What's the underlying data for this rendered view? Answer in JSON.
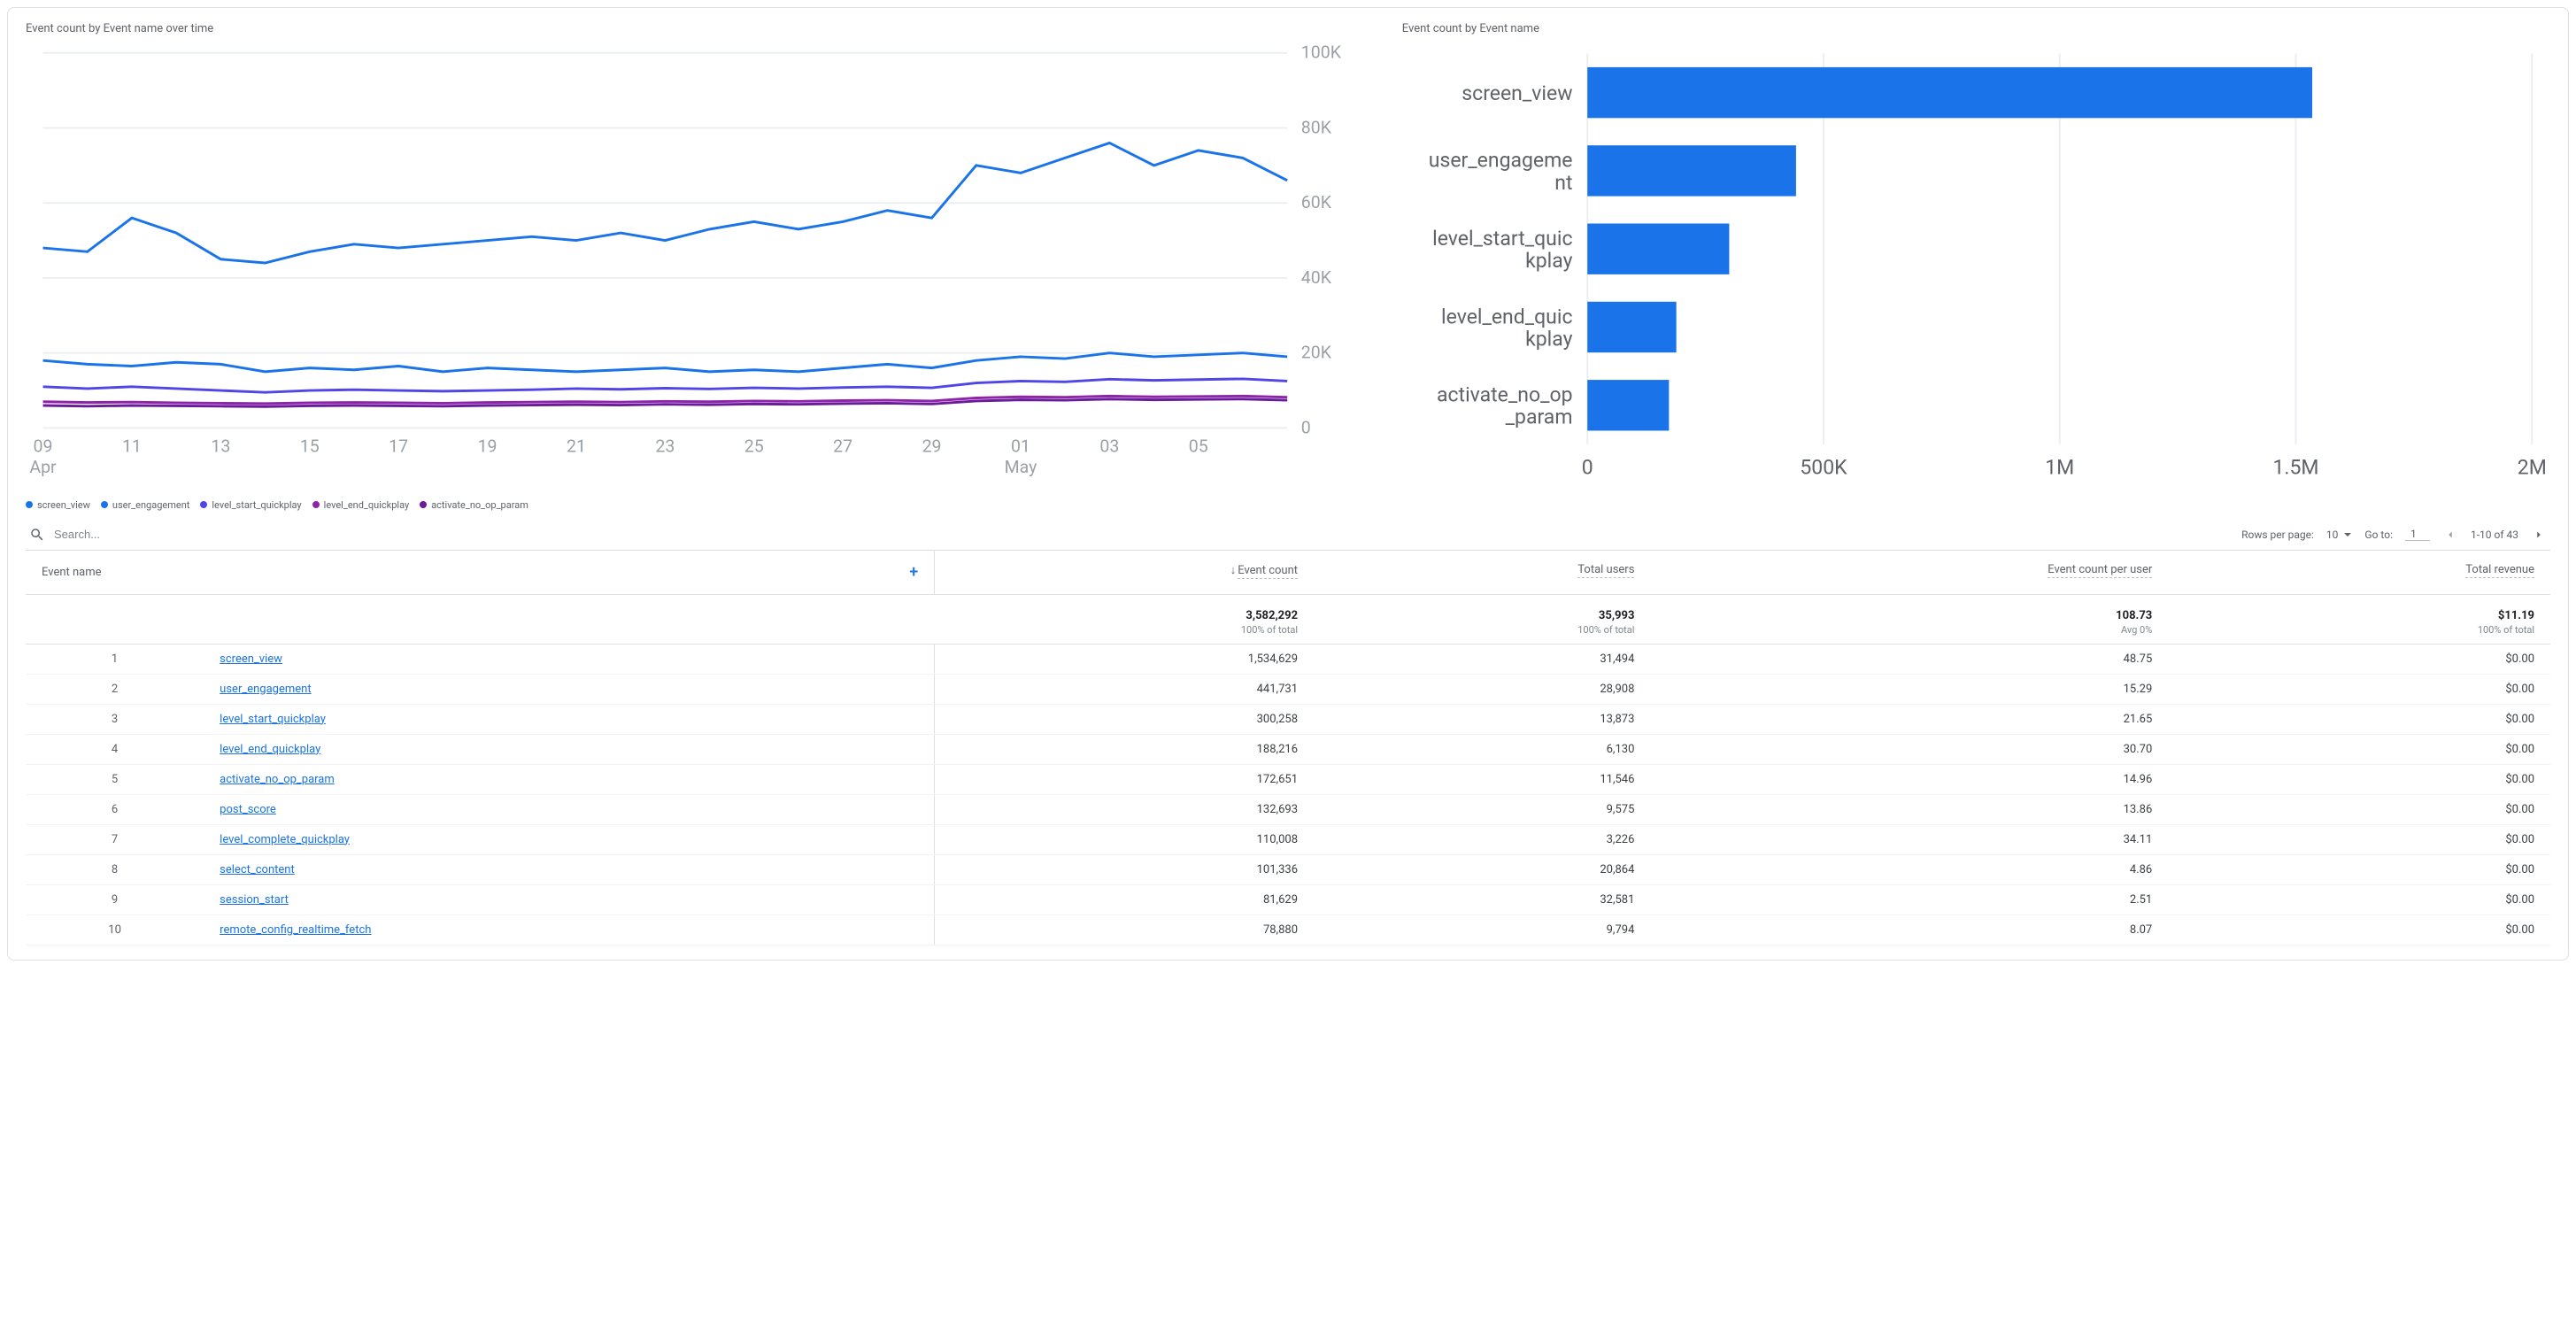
{
  "line_chart": {
    "title": "Event count by Event name over time",
    "type": "line",
    "background_color": "#ffffff",
    "grid_color": "#eceff1",
    "axis_text_color": "#9aa0a6",
    "axis_fontsize": 10,
    "line_width": 1.5,
    "y": {
      "min": 0,
      "max": 100000,
      "ticks": [
        0,
        20000,
        40000,
        60000,
        80000,
        100000
      ],
      "tick_labels": [
        "0",
        "20K",
        "40K",
        "60K",
        "80K",
        "100K"
      ]
    },
    "x": {
      "ticks": [
        0,
        1,
        2,
        3,
        4,
        5,
        6,
        7,
        8,
        9,
        10,
        11,
        12,
        13,
        14
      ],
      "tick_labels": [
        "09",
        "11",
        "13",
        "15",
        "17",
        "19",
        "21",
        "23",
        "25",
        "27",
        "29",
        "01",
        "03",
        "05",
        ""
      ],
      "lower_labels": {
        "0": "Apr",
        "11": "May"
      }
    },
    "n_points": 29,
    "series": [
      {
        "name": "screen_view",
        "color": "#1a73e8",
        "values": [
          48000,
          47000,
          56000,
          52000,
          45000,
          44000,
          47000,
          49000,
          48000,
          49000,
          50000,
          51000,
          50000,
          52000,
          50000,
          53000,
          55000,
          53000,
          55000,
          58000,
          56000,
          70000,
          68000,
          72000,
          76000,
          70000,
          74000,
          72000,
          66000
        ]
      },
      {
        "name": "user_engagement",
        "color": "#1a73e8",
        "values": [
          18000,
          17000,
          16500,
          17500,
          17000,
          15000,
          16000,
          15500,
          16500,
          15000,
          16000,
          15500,
          15000,
          15500,
          16000,
          15000,
          15500,
          15000,
          16000,
          17000,
          16000,
          18000,
          19000,
          18500,
          20000,
          19000,
          19500,
          20000,
          19000
        ]
      },
      {
        "name": "level_start_quickplay",
        "color": "#4f46e5",
        "values": [
          11000,
          10500,
          11000,
          10500,
          10000,
          9500,
          10000,
          10200,
          10000,
          9800,
          10000,
          10200,
          10500,
          10300,
          10600,
          10400,
          10700,
          10500,
          10800,
          11000,
          10700,
          12000,
          12500,
          12300,
          13000,
          12700,
          12900,
          13100,
          12500
        ]
      },
      {
        "name": "level_end_quickplay",
        "color": "#8e24aa",
        "values": [
          7000,
          6800,
          6900,
          6700,
          6600,
          6500,
          6700,
          6800,
          6700,
          6600,
          6800,
          6900,
          7000,
          6900,
          7100,
          7000,
          7200,
          7100,
          7300,
          7400,
          7200,
          8000,
          8300,
          8200,
          8500,
          8300,
          8400,
          8500,
          8200
        ]
      },
      {
        "name": "activate_no_op_param",
        "color": "#6a1b9a",
        "values": [
          6000,
          5800,
          6000,
          5900,
          5800,
          5700,
          5900,
          6000,
          5900,
          5800,
          6000,
          6100,
          6200,
          6100,
          6300,
          6200,
          6400,
          6300,
          6500,
          6600,
          6400,
          7200,
          7500,
          7400,
          7700,
          7500,
          7600,
          7700,
          7400
        ]
      }
    ]
  },
  "bar_chart": {
    "title": "Event count by Event name",
    "type": "bar-horizontal",
    "bar_color": "#1a73e8",
    "grid_color": "#eceff1",
    "axis_text_color": "#5f6368",
    "axis_fontsize": 11,
    "x": {
      "min": 0,
      "max": 2000000,
      "ticks": [
        0,
        500000,
        1000000,
        1500000,
        2000000
      ],
      "tick_labels": [
        "0",
        "500K",
        "1M",
        "1.5M",
        "2M"
      ]
    },
    "bars": [
      {
        "label": "screen_view",
        "value": 1534629
      },
      {
        "label": "user_engagement",
        "value": 441731,
        "label_wrap": "user_engageme\nnt"
      },
      {
        "label": "level_start_quickplay",
        "value": 300258,
        "label_wrap": "level_start_quic\nkplay"
      },
      {
        "label": "level_end_quickplay",
        "value": 188216,
        "label_wrap": "level_end_quic\nkplay"
      },
      {
        "label": "activate_no_op_param",
        "value": 172651,
        "label_wrap": "activate_no_op\n_param"
      }
    ]
  },
  "toolbar": {
    "search_placeholder": "Search...",
    "rows_per_page_label": "Rows per page:",
    "rows_per_page_value": "10",
    "goto_label": "Go to:",
    "goto_value": "1",
    "range_text": "1-10 of 43"
  },
  "table": {
    "columns": {
      "name": "Event name",
      "count": "Event count",
      "users": "Total users",
      "per_user": "Event count per user",
      "revenue": "Total revenue"
    },
    "sorted_column": "count",
    "totals": {
      "count": "3,582,292",
      "count_sub": "100% of total",
      "users": "35,993",
      "users_sub": "100% of total",
      "per_user": "108.73",
      "per_user_sub": "Avg 0%",
      "revenue": "$11.19",
      "revenue_sub": "100% of total"
    },
    "rows": [
      {
        "idx": 1,
        "name": "screen_view",
        "count": "1,534,629",
        "users": "31,494",
        "per_user": "48.75",
        "revenue": "$0.00"
      },
      {
        "idx": 2,
        "name": "user_engagement",
        "count": "441,731",
        "users": "28,908",
        "per_user": "15.29",
        "revenue": "$0.00"
      },
      {
        "idx": 3,
        "name": "level_start_quickplay",
        "count": "300,258",
        "users": "13,873",
        "per_user": "21.65",
        "revenue": "$0.00"
      },
      {
        "idx": 4,
        "name": "level_end_quickplay",
        "count": "188,216",
        "users": "6,130",
        "per_user": "30.70",
        "revenue": "$0.00"
      },
      {
        "idx": 5,
        "name": "activate_no_op_param",
        "count": "172,651",
        "users": "11,546",
        "per_user": "14.96",
        "revenue": "$0.00"
      },
      {
        "idx": 6,
        "name": "post_score",
        "count": "132,693",
        "users": "9,575",
        "per_user": "13.86",
        "revenue": "$0.00"
      },
      {
        "idx": 7,
        "name": "level_complete_quickplay",
        "count": "110,008",
        "users": "3,226",
        "per_user": "34.11",
        "revenue": "$0.00"
      },
      {
        "idx": 8,
        "name": "select_content",
        "count": "101,336",
        "users": "20,864",
        "per_user": "4.86",
        "revenue": "$0.00"
      },
      {
        "idx": 9,
        "name": "session_start",
        "count": "81,629",
        "users": "32,581",
        "per_user": "2.51",
        "revenue": "$0.00"
      },
      {
        "idx": 10,
        "name": "remote_config_realtime_fetch",
        "count": "78,880",
        "users": "9,794",
        "per_user": "8.07",
        "revenue": "$0.00"
      }
    ]
  }
}
